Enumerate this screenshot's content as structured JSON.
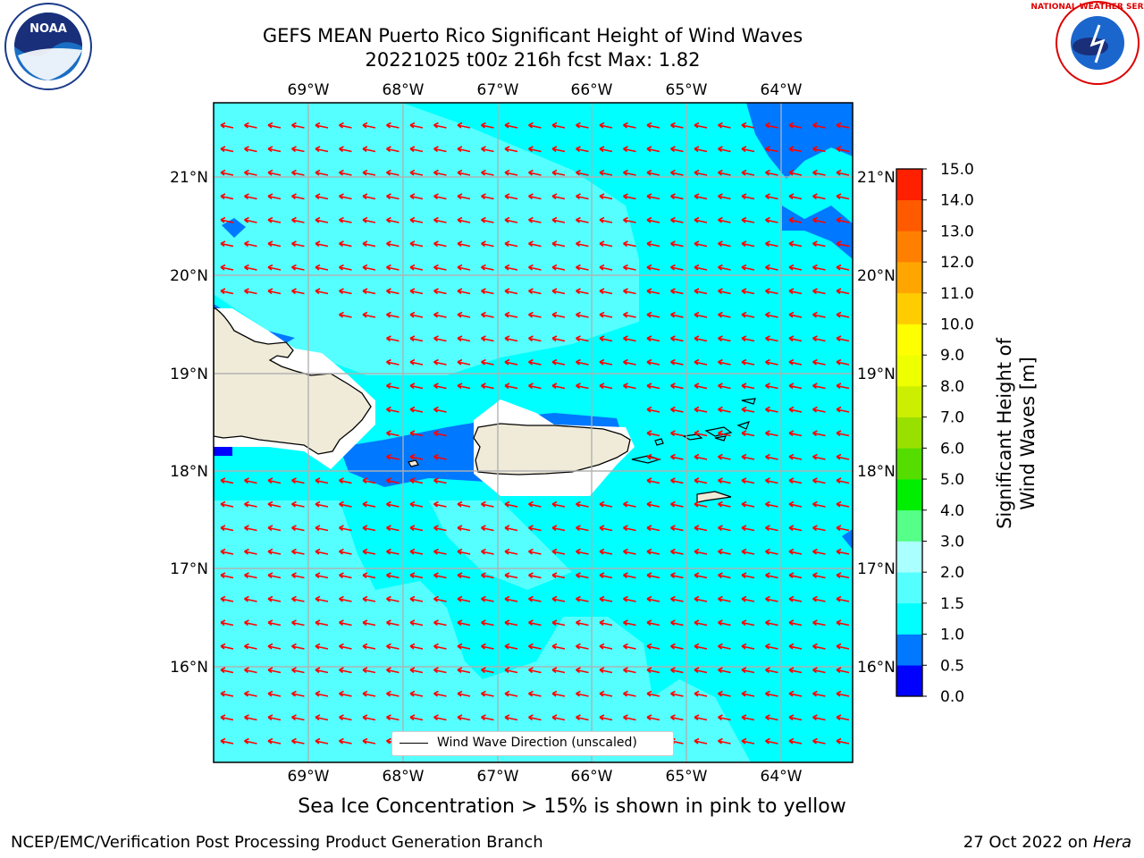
{
  "title": {
    "line1": "GEFS MEAN Puerto Rico Significant Height of Wind Waves",
    "line2": "20221025 t00z 216h fcst   Max: 1.82"
  },
  "logos": {
    "left": "noaa-logo",
    "right": "national-weather-service-logo"
  },
  "map": {
    "lon_range": [
      -70,
      -63.25
    ],
    "lat_range": [
      15.0,
      21.75
    ],
    "lon_ticks": [
      -69,
      -68,
      -67,
      -66,
      -65,
      -64
    ],
    "lon_labels": [
      "69°W",
      "68°W",
      "67°W",
      "66°W",
      "65°W",
      "64°W"
    ],
    "lat_ticks": [
      16,
      17,
      18,
      19,
      20,
      21
    ],
    "lat_labels": [
      "16°N",
      "17°N",
      "18°N",
      "19°N",
      "20°N",
      "21°N"
    ],
    "land_color": "#efebd8",
    "wave_direction_color": "#ff0000",
    "wave_direction": "westward (from east-southeast)"
  },
  "legend": {
    "label": "Wind Wave Direction (unscaled)"
  },
  "colorbar": {
    "title": "Significant Height of Wind Waves [m]",
    "levels": [
      "0.0",
      "0.5",
      "1.0",
      "1.5",
      "2.0",
      "3.0",
      "4.0",
      "5.0",
      "6.0",
      "7.0",
      "8.0",
      "9.0",
      "10.0",
      "11.0",
      "12.0",
      "13.0",
      "14.0",
      "15.0"
    ],
    "colors": [
      "#0000ff",
      "#0078ff",
      "#00ffff",
      "#55ffff",
      "#aaffff",
      "#55ff88",
      "#00ee00",
      "#55dd00",
      "#99e000",
      "#ccee00",
      "#eeff00",
      "#ffff00",
      "#ffcc00",
      "#ffa500",
      "#ff8000",
      "#ff5a00",
      "#ff2000"
    ]
  },
  "ice_note": "Sea Ice Concentration > 15% is shown in pink to yellow",
  "footer": {
    "left": "NCEP/EMC/Verification Post Processing Product Generation Branch",
    "right_date": "27 Oct 2022 on ",
    "right_host": "Hera"
  }
}
